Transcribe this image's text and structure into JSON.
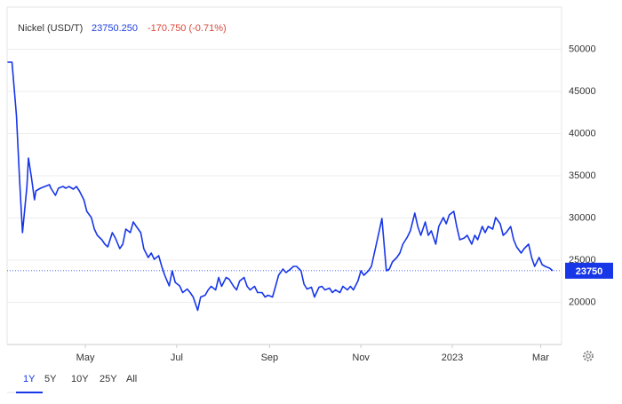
{
  "chart_data": {
    "type": "line",
    "title": "Nickel (USD/T)",
    "price": "23750.250",
    "change": "-170.750 (-0.71%)",
    "price_tag": 23750,
    "color": "#1736e8",
    "grid": true,
    "ranges": [
      "1Y",
      "5Y",
      "10Y",
      "25Y",
      "All"
    ],
    "active_range": "1Y",
    "xlim": [
      -3,
      372
    ],
    "xticks": [
      {
        "value": 54,
        "label": "May"
      },
      {
        "value": 115,
        "label": "Jul"
      },
      {
        "value": 177,
        "label": "Sep"
      },
      {
        "value": 238,
        "label": "Nov"
      },
      {
        "value": 299,
        "label": "2023"
      },
      {
        "value": 358,
        "label": "Mar"
      }
    ],
    "ylim": [
      15000,
      55000
    ],
    "yticks": [
      20000,
      25000,
      30000,
      35000,
      40000,
      45000,
      50000
    ],
    "x": [
      2,
      5,
      8,
      10,
      12,
      15,
      16,
      18,
      20,
      21,
      24,
      27,
      30,
      31,
      34,
      36,
      39,
      41,
      43,
      46,
      48,
      50,
      53,
      55,
      58,
      60,
      62,
      65,
      67,
      69,
      72,
      74,
      77,
      79,
      81,
      84,
      86,
      88,
      91,
      93,
      96,
      98,
      100,
      103,
      105,
      107,
      110,
      112,
      114,
      117,
      119,
      122,
      124,
      126,
      129,
      131,
      134,
      136,
      138,
      141,
      143,
      145,
      148,
      150,
      153,
      155,
      157,
      160,
      162,
      164,
      167,
      169,
      172,
      174,
      176,
      179,
      181,
      183,
      186,
      188,
      191,
      193,
      195,
      198,
      200,
      202,
      205,
      207,
      210,
      212,
      214,
      217,
      219,
      221,
      224,
      226,
      229,
      231,
      233,
      236,
      238,
      240,
      243,
      245,
      247,
      250,
      252,
      255,
      257,
      259,
      262,
      264,
      266,
      269,
      271,
      274,
      276,
      278,
      281,
      283,
      285,
      288,
      290,
      293,
      295,
      297,
      300,
      302,
      304,
      307,
      309,
      312,
      314,
      316,
      319,
      321,
      323,
      326,
      328,
      331,
      333,
      335,
      338,
      340,
      342,
      345,
      347,
      350,
      352,
      354,
      357,
      359,
      361,
      364,
      366
    ],
    "values": [
      48470,
      48470,
      42160,
      34790,
      28260,
      33740,
      37110,
      34790,
      32160,
      33210,
      33530,
      33740,
      33950,
      33530,
      32680,
      33530,
      33740,
      33530,
      33740,
      33420,
      33740,
      33210,
      32160,
      30790,
      30050,
      28680,
      27950,
      27420,
      26890,
      26580,
      28260,
      27630,
      26370,
      26890,
      28680,
      28260,
      29530,
      29000,
      28260,
      26370,
      25320,
      25840,
      25110,
      25530,
      24260,
      23210,
      21950,
      23740,
      22370,
      21950,
      21160,
      21580,
      21160,
      20630,
      19050,
      20630,
      20840,
      21470,
      21890,
      21470,
      22950,
      21890,
      22950,
      22740,
      21890,
      21470,
      22530,
      22950,
      21890,
      21470,
      21890,
      21160,
      21160,
      20630,
      20840,
      20630,
      21890,
      23210,
      23950,
      23530,
      23950,
      24260,
      24260,
      23740,
      22160,
      21580,
      21790,
      20630,
      21790,
      21890,
      21470,
      21680,
      21160,
      21470,
      21160,
      21890,
      21470,
      21890,
      21470,
      22530,
      23740,
      23210,
      23740,
      24260,
      25840,
      28260,
      29950,
      23740,
      23950,
      24790,
      25320,
      25840,
      26890,
      27740,
      28470,
      30580,
      28990,
      27950,
      29530,
      27950,
      28470,
      26890,
      29000,
      30050,
      29320,
      30370,
      30790,
      28990,
      27420,
      27630,
      27950,
      26890,
      27950,
      27420,
      29000,
      28260,
      29000,
      28680,
      30050,
      29320,
      27950,
      28260,
      28990,
      27420,
      26580,
      25840,
      26370,
      26890,
      25320,
      24260,
      25320,
      24470,
      24260,
      24050,
      23750
    ]
  }
}
